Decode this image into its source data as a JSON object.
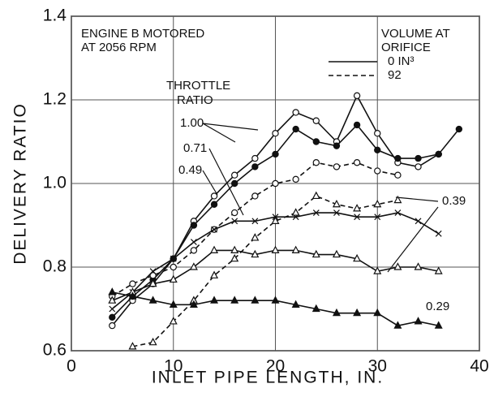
{
  "chart_data": {
    "type": "line",
    "xlabel": "INLET PIPE LENGTH,  IN.",
    "ylabel": "DELIVERY RATIO",
    "xlim": [
      0,
      40
    ],
    "xticks": [
      0,
      10,
      20,
      30,
      40
    ],
    "ylim": [
      0.6,
      1.4
    ],
    "yticks": [
      0.6,
      0.8,
      {
        "value": 1,
        "label": "1.0"
      },
      1.2,
      1.4
    ],
    "grid": true,
    "annotations": [
      "ENGINE B MOTORED",
      "AT 2056 RPM",
      "VOLUME AT",
      "ORIFICE",
      "THROTTLE",
      "RATIO",
      "1.00",
      "0.71",
      "0.49",
      "0.39",
      "0.29"
    ],
    "legend": [
      {
        "label": "0  IN³",
        "dashed": false
      },
      {
        "label": "92",
        "dashed": true
      }
    ],
    "series": [
      {
        "color": "#111",
        "dashed": false,
        "marker": "open-circle",
        "x": [
          4,
          6,
          8,
          10,
          12,
          14,
          16,
          18,
          20,
          22,
          24,
          26,
          28,
          30,
          32,
          34,
          36
        ],
        "values": [
          0.66,
          0.72,
          0.76,
          0.82,
          0.91,
          0.97,
          1.02,
          1.06,
          1.12,
          1.17,
          1.15,
          1.1,
          1.21,
          1.12,
          1.05,
          1.04,
          1.07
        ]
      },
      {
        "color": "#111",
        "dashed": false,
        "marker": "filled-circle",
        "x": [
          4,
          6,
          8,
          10,
          12,
          14,
          16,
          18,
          20,
          22,
          24,
          26,
          28,
          30,
          32,
          34,
          36,
          38
        ],
        "values": [
          0.68,
          0.73,
          0.77,
          0.82,
          0.9,
          0.95,
          1.0,
          1.04,
          1.07,
          1.13,
          1.1,
          1.09,
          1.14,
          1.08,
          1.06,
          1.06,
          1.07,
          1.13
        ]
      },
      {
        "color": "#111",
        "dashed": true,
        "marker": "open-circle",
        "x": [
          4,
          6,
          8,
          10,
          12,
          14,
          16,
          18,
          20,
          22,
          24,
          26,
          28,
          30,
          32
        ],
        "values": [
          0.73,
          0.76,
          0.78,
          0.8,
          0.84,
          0.89,
          0.93,
          0.97,
          1.0,
          1.01,
          1.05,
          1.04,
          1.05,
          1.03,
          1.02
        ]
      },
      {
        "color": "#111",
        "dashed": false,
        "marker": "x",
        "x": [
          4,
          6,
          8,
          10,
          12,
          14,
          16,
          18,
          20,
          22,
          24,
          26,
          28,
          30,
          32,
          34,
          36
        ],
        "values": [
          0.7,
          0.74,
          0.79,
          0.82,
          0.86,
          0.89,
          0.91,
          0.91,
          0.92,
          0.92,
          0.93,
          0.93,
          0.92,
          0.92,
          0.93,
          0.91,
          0.88
        ]
      },
      {
        "color": "#111",
        "dashed": true,
        "marker": "open-triangle",
        "x": [
          6,
          8,
          10,
          12,
          14,
          16,
          18,
          20,
          22,
          24,
          26,
          28,
          30,
          32
        ],
        "values": [
          0.61,
          0.62,
          0.67,
          0.72,
          0.78,
          0.82,
          0.87,
          0.91,
          0.93,
          0.97,
          0.95,
          0.94,
          0.95,
          0.96
        ]
      },
      {
        "color": "#111",
        "dashed": false,
        "marker": "open-triangle",
        "x": [
          4,
          6,
          8,
          10,
          12,
          14,
          16,
          18,
          20,
          22,
          24,
          26,
          28,
          30,
          32,
          34,
          36
        ],
        "values": [
          0.72,
          0.74,
          0.76,
          0.77,
          0.8,
          0.84,
          0.84,
          0.83,
          0.84,
          0.84,
          0.83,
          0.83,
          0.82,
          0.79,
          0.8,
          0.8,
          0.79
        ]
      },
      {
        "color": "#111",
        "dashed": false,
        "marker": "filled-triangle",
        "x": [
          4,
          6,
          8,
          10,
          12,
          14,
          16,
          18,
          20,
          22,
          24,
          26,
          28,
          30,
          32,
          34,
          36
        ],
        "values": [
          0.74,
          0.73,
          0.72,
          0.71,
          0.71,
          0.72,
          0.72,
          0.72,
          0.72,
          0.71,
          0.7,
          0.69,
          0.69,
          0.69,
          0.66,
          0.67,
          0.66
        ]
      }
    ]
  }
}
